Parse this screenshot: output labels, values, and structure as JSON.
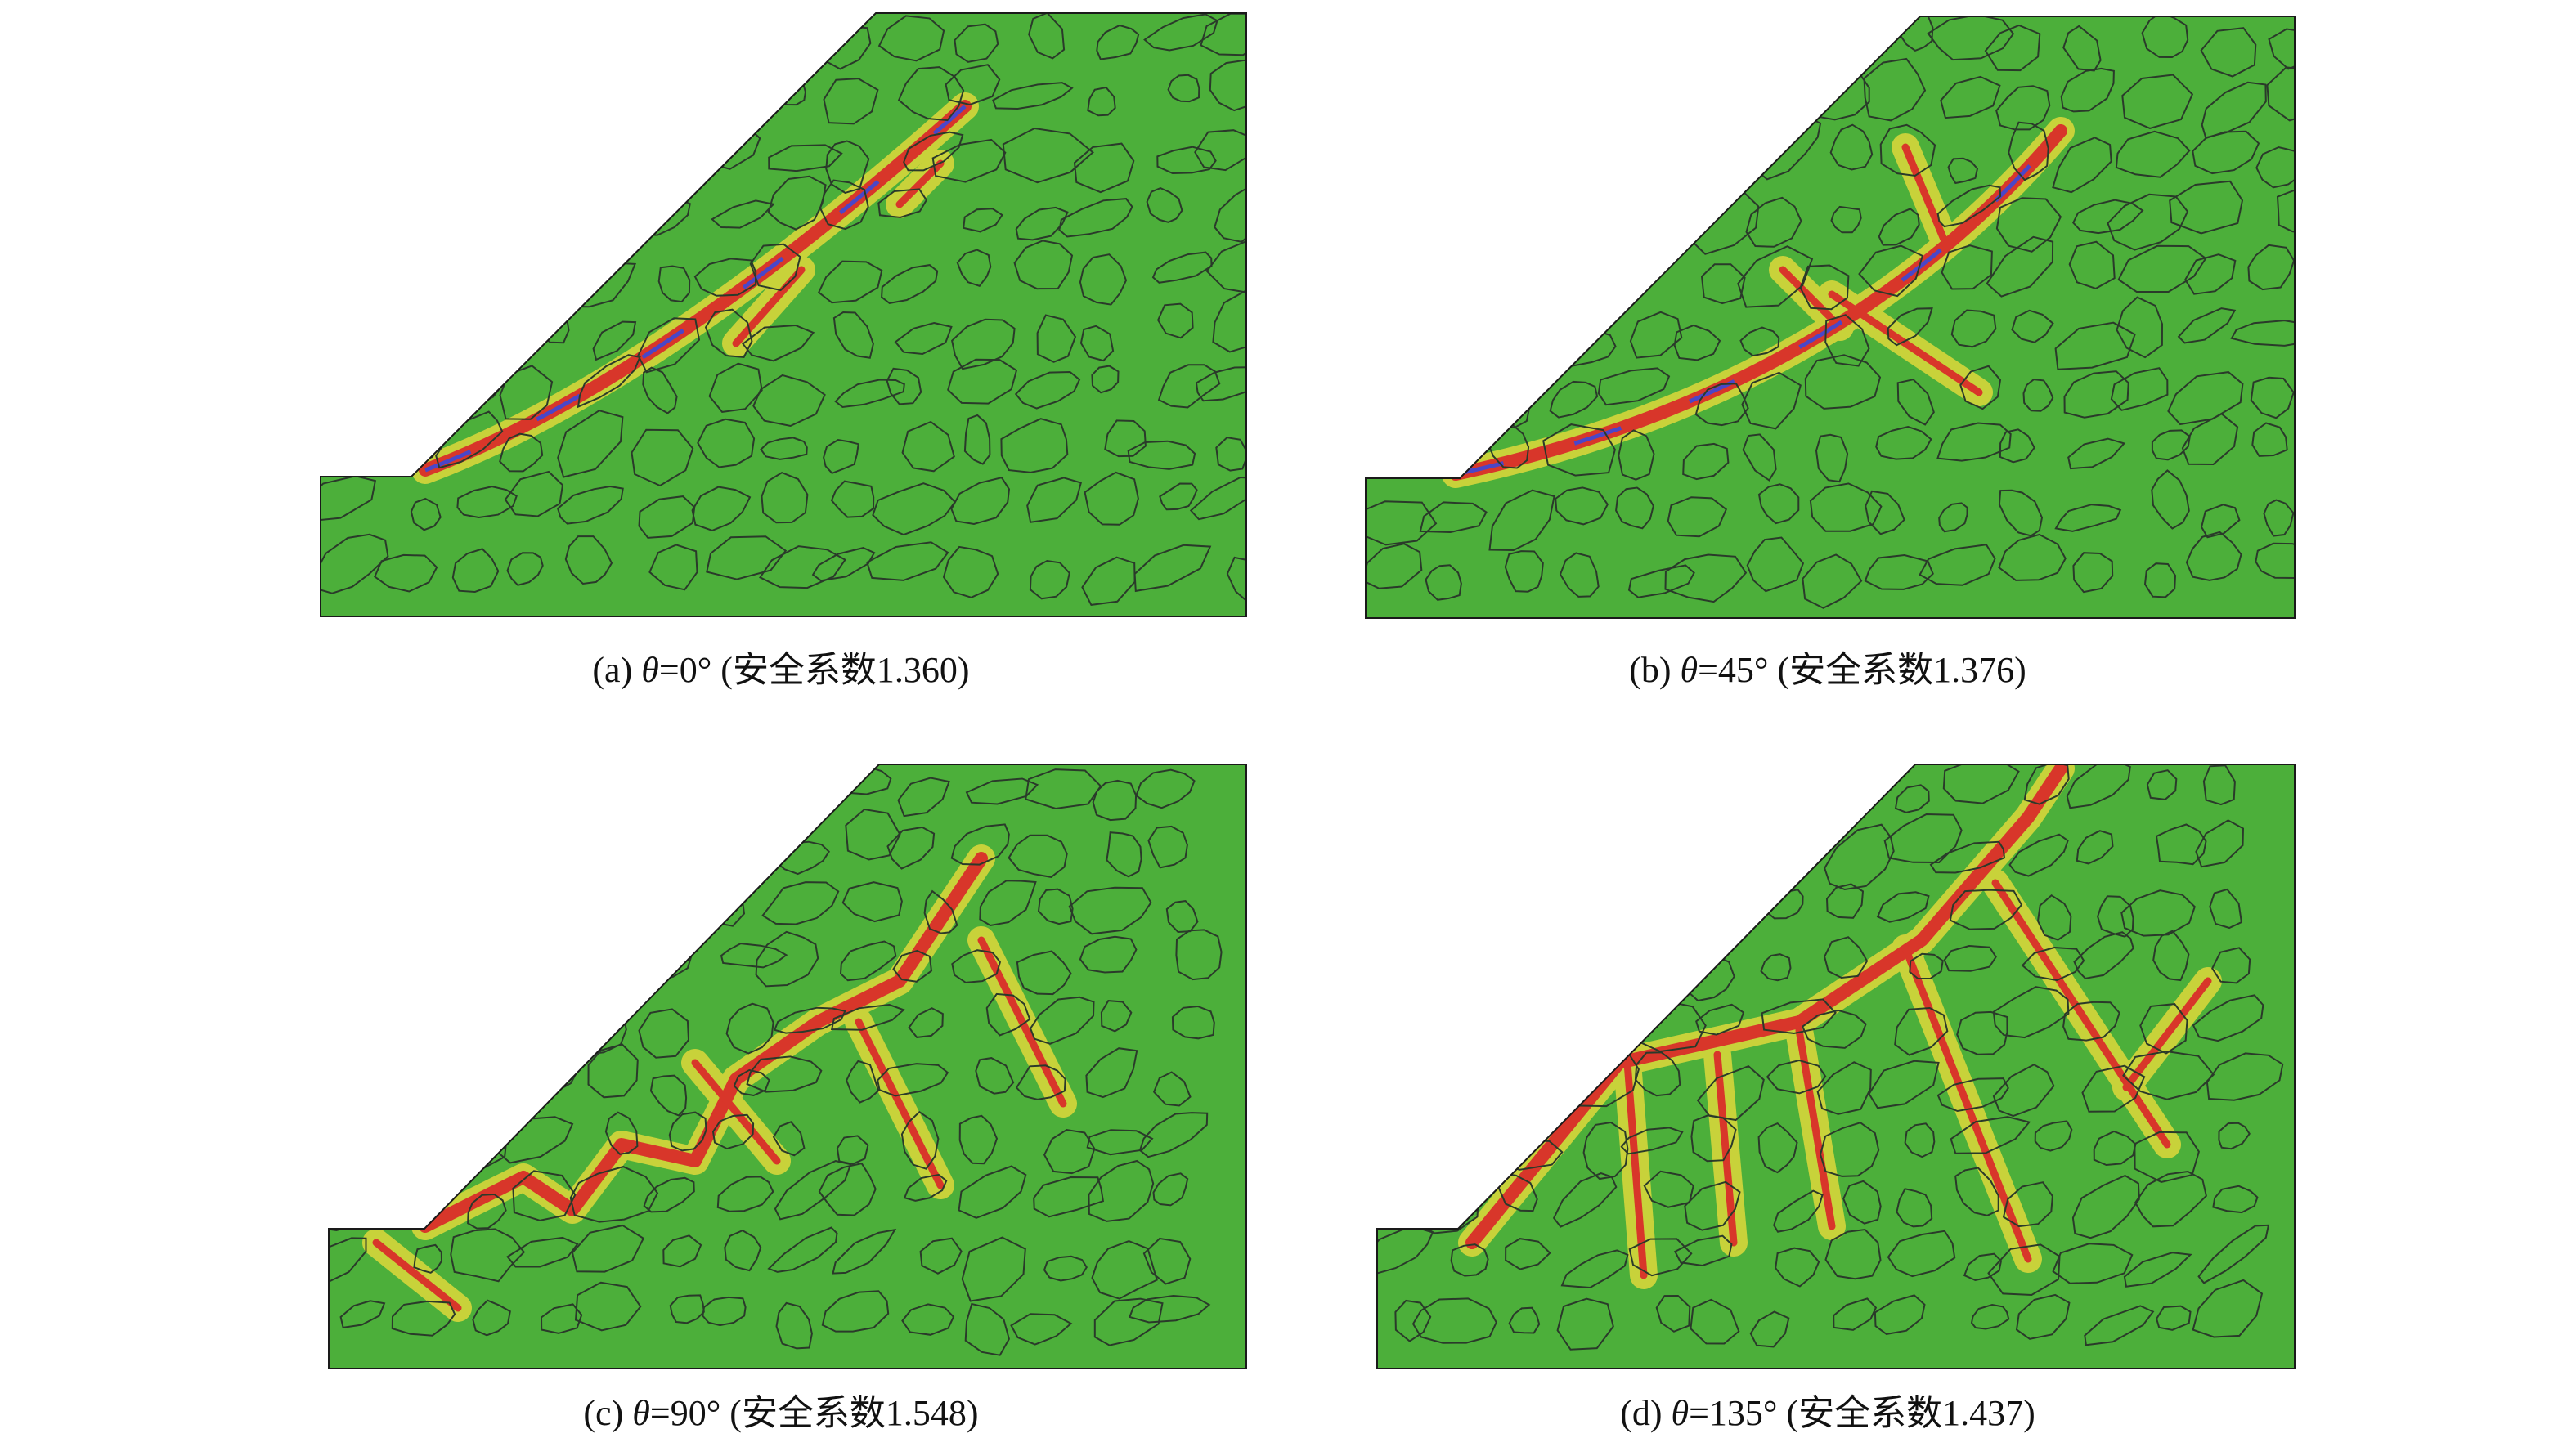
{
  "panels": [
    {
      "label": "(a)",
      "symbol": "θ",
      "text": "=0° (安全系数1.360)"
    },
    {
      "label": "(b)",
      "symbol": "θ",
      "text": "=45° (安全系数1.376)"
    },
    {
      "label": "(c)",
      "symbol": "θ",
      "text": "=90° (安全系数1.548)"
    },
    {
      "label": "(d)",
      "symbol": "θ",
      "text": "=135° (安全系数1.437)"
    }
  ]
}
